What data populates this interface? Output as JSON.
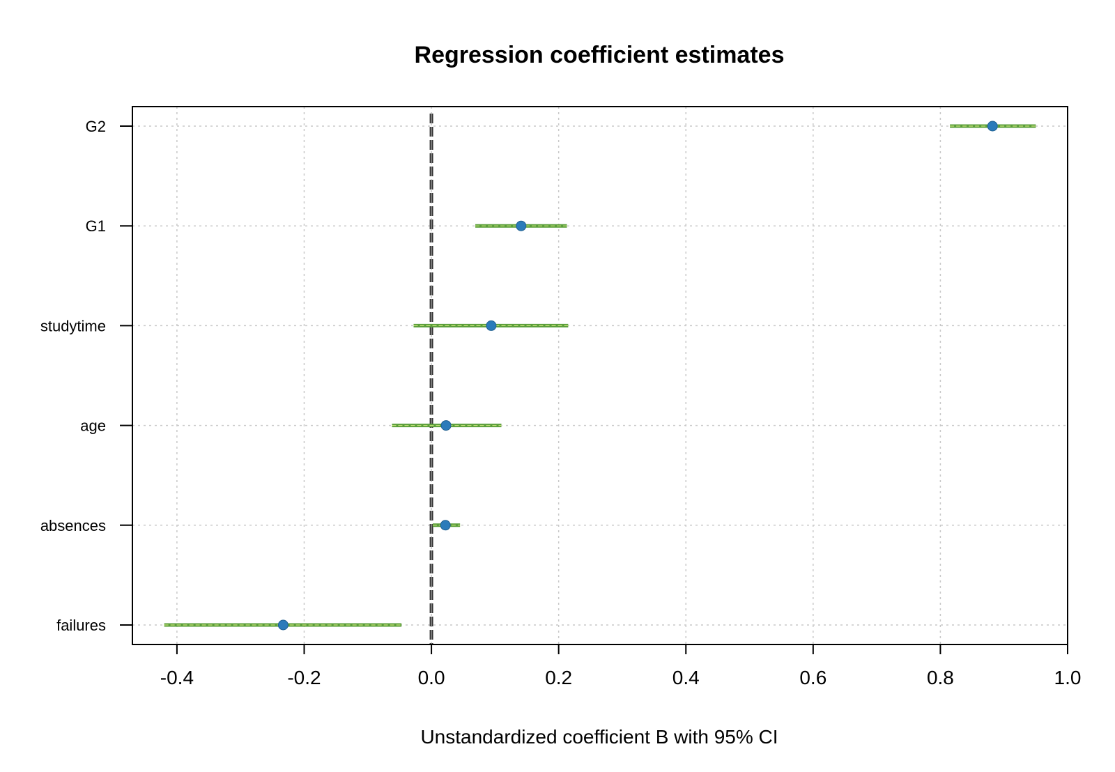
{
  "chart_data": {
    "type": "scatter",
    "title": "Regression coefficient estimates",
    "xlabel": "Unstandardized coefficient B with 95% CI",
    "ylabel": "",
    "xlim": [
      -0.47,
      1.0
    ],
    "x_ticks": [
      "-0.4",
      "-0.2",
      "0.0",
      "0.2",
      "0.4",
      "0.6",
      "0.8",
      "1.0"
    ],
    "grid": true,
    "reference_line": 0.0,
    "categories": [
      "G2",
      "G1",
      "studytime",
      "age",
      "absences",
      "failures"
    ],
    "estimates": [
      0.882,
      0.141,
      0.094,
      0.023,
      0.022,
      -0.233
    ],
    "ci_lower": [
      0.815,
      0.069,
      -0.028,
      -0.062,
      0.002,
      -0.42
    ],
    "ci_upper": [
      0.95,
      0.213,
      0.215,
      0.11,
      0.045,
      -0.047
    ],
    "colors": {
      "point": "#2b7bba",
      "ci": "#5a9e3a",
      "ci_highlight": "#c6e27a",
      "reference": "#333333",
      "grid": "#c8c8c8"
    }
  }
}
